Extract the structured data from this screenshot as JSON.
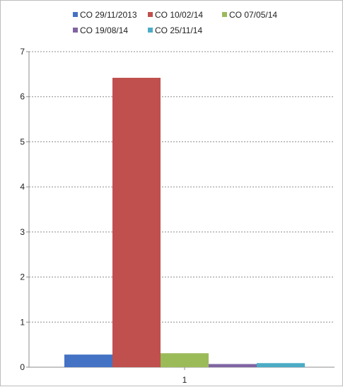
{
  "chart_data": {
    "type": "bar",
    "categories": [
      "1"
    ],
    "series": [
      {
        "name": "CO 29/11/2013",
        "values": [
          0.28
        ],
        "color": "#4472C4"
      },
      {
        "name": "CO 10/02/14",
        "values": [
          6.42
        ],
        "color": "#C0504D"
      },
      {
        "name": "CO 07/05/14",
        "values": [
          0.31
        ],
        "color": "#9BBB59"
      },
      {
        "name": "CO 19/08/14",
        "values": [
          0.07
        ],
        "color": "#8064A2"
      },
      {
        "name": "CO 25/11/14",
        "values": [
          0.09
        ],
        "color": "#4BACC6"
      }
    ],
    "ylim": [
      0,
      7
    ],
    "yticks": [
      "0",
      "1",
      "2",
      "3",
      "4",
      "5",
      "6",
      "7"
    ],
    "grid": true,
    "legend_position": "top"
  }
}
